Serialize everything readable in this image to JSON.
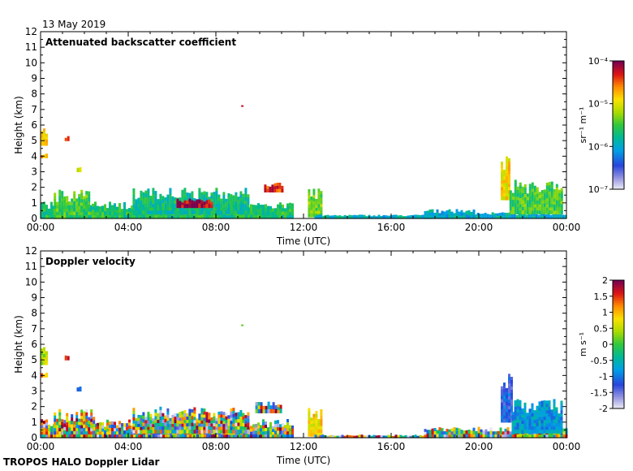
{
  "date_label": "13 May 2019",
  "footer_label": "TROPOS HALO Doppler Lidar",
  "chart_data": [
    {
      "type": "heatmap",
      "title": "Attenuated backscatter coefficient",
      "xlabel": "Time (UTC)",
      "ylabel": "Height (km)",
      "x_ticks": [
        "00:00",
        "04:00",
        "08:00",
        "12:00",
        "16:00",
        "20:00",
        "00:00"
      ],
      "x_range_hours": [
        0,
        24
      ],
      "y_ticks": [
        0,
        1,
        2,
        3,
        4,
        5,
        6,
        7,
        8,
        9,
        10,
        11,
        12
      ],
      "ylim": [
        0,
        12
      ],
      "colorbar": {
        "scale": "log",
        "unit": "sr⁻¹ m⁻¹",
        "tick_labels": [
          "10⁻⁴",
          "10⁻⁵",
          "10⁻⁶",
          "10⁻⁷"
        ],
        "tick_values": [
          0.0001,
          1e-05,
          1e-06,
          1e-07
        ],
        "range": [
          1e-07,
          0.0001
        ]
      },
      "features": [
        {
          "t0": 0.0,
          "t1": 0.25,
          "h0": 3.9,
          "h1": 4.2,
          "level": 0.75
        },
        {
          "t0": 0.0,
          "t1": 0.3,
          "h0": 4.7,
          "h1": 6.0,
          "level": 0.7
        },
        {
          "t0": 1.1,
          "t1": 1.3,
          "h0": 5.0,
          "h1": 5.3,
          "level": 0.85
        },
        {
          "t0": 1.65,
          "t1": 1.8,
          "h0": 3.0,
          "h1": 3.3,
          "level": 0.6
        },
        {
          "t0": 9.15,
          "t1": 9.25,
          "h0": 7.2,
          "h1": 7.3,
          "level": 0.95
        },
        {
          "t0": 0.0,
          "t1": 11.5,
          "h0": 0.0,
          "h1": 1.1,
          "level": 0.45
        },
        {
          "t0": 0.6,
          "t1": 2.2,
          "h0": 0.0,
          "h1": 1.9,
          "level": 0.5
        },
        {
          "t0": 4.2,
          "t1": 9.5,
          "h0": 0.3,
          "h1": 2.0,
          "level": 0.42
        },
        {
          "t0": 6.2,
          "t1": 7.8,
          "h0": 0.7,
          "h1": 1.3,
          "level": 0.95
        },
        {
          "t0": 10.2,
          "t1": 11.0,
          "h0": 1.7,
          "h1": 2.3,
          "level": 0.88
        },
        {
          "t0": 12.2,
          "t1": 12.8,
          "h0": 0.1,
          "h1": 2.0,
          "level": 0.55
        },
        {
          "t0": 12.5,
          "t1": 17.8,
          "h0": 0.0,
          "h1": 0.25,
          "level": 0.35
        },
        {
          "t0": 17.5,
          "t1": 19.8,
          "h0": 0.0,
          "h1": 0.6,
          "level": 0.35
        },
        {
          "t0": 19.8,
          "t1": 24.0,
          "h0": 0.0,
          "h1": 0.4,
          "level": 0.35
        },
        {
          "t0": 21.0,
          "t1": 21.4,
          "h0": 1.2,
          "h1": 4.2,
          "level": 0.7
        },
        {
          "t0": 21.4,
          "t1": 23.8,
          "h0": 0.3,
          "h1": 2.5,
          "level": 0.5
        }
      ]
    },
    {
      "type": "heatmap",
      "title": "Doppler velocity",
      "xlabel": "Time (UTC)",
      "ylabel": "Height (km)",
      "x_ticks": [
        "00:00",
        "04:00",
        "08:00",
        "12:00",
        "16:00",
        "20:00",
        "00:00"
      ],
      "x_range_hours": [
        0,
        24
      ],
      "y_ticks": [
        0,
        1,
        2,
        3,
        4,
        5,
        6,
        7,
        8,
        9,
        10,
        11,
        12
      ],
      "ylim": [
        0,
        12
      ],
      "colorbar": {
        "scale": "linear",
        "unit": "m s⁻¹",
        "tick_labels": [
          "2",
          "1.5",
          "1",
          "0.5",
          "0",
          "-0.5",
          "-1",
          "-1.5",
          "-2"
        ],
        "tick_values": [
          2,
          1.5,
          1,
          0.5,
          0,
          -0.5,
          -1,
          -1.5,
          -2
        ],
        "range": [
          -2,
          2
        ]
      },
      "features": [
        {
          "t0": 0.0,
          "t1": 0.25,
          "h0": 3.9,
          "h1": 4.2,
          "level": 0.8
        },
        {
          "t0": 0.0,
          "t1": 0.3,
          "h0": 4.7,
          "h1": 6.0,
          "level": 0.6
        },
        {
          "t0": 1.1,
          "t1": 1.3,
          "h0": 5.0,
          "h1": 5.3,
          "level": 0.95
        },
        {
          "t0": 1.65,
          "t1": 1.8,
          "h0": 3.0,
          "h1": 3.3,
          "level": 0.3
        },
        {
          "t0": 9.15,
          "t1": 9.25,
          "h0": 7.2,
          "h1": 7.3,
          "level": 0.5
        },
        {
          "t0": 0.0,
          "t1": 11.5,
          "h0": 0.0,
          "h1": 1.2,
          "level": -1
        },
        {
          "t0": 0.6,
          "t1": 2.4,
          "h0": 0.0,
          "h1": 1.9,
          "level": -1
        },
        {
          "t0": 4.2,
          "t1": 9.5,
          "h0": 0.3,
          "h1": 2.0,
          "level": -1
        },
        {
          "t0": 9.8,
          "t1": 11.0,
          "h0": 1.6,
          "h1": 2.4,
          "level": -1
        },
        {
          "t0": 12.2,
          "t1": 12.8,
          "h0": 0.1,
          "h1": 2.0,
          "level": 0.7
        },
        {
          "t0": 12.5,
          "t1": 17.8,
          "h0": 0.0,
          "h1": 0.2,
          "level": -1
        },
        {
          "t0": 17.5,
          "t1": 24.0,
          "h0": 0.0,
          "h1": 0.7,
          "level": -1
        },
        {
          "t0": 21.0,
          "t1": 21.5,
          "h0": 1.0,
          "h1": 4.2,
          "level": 0.2
        },
        {
          "t0": 21.5,
          "t1": 23.8,
          "h0": 0.3,
          "h1": 2.5,
          "level": 0.3
        }
      ]
    }
  ]
}
